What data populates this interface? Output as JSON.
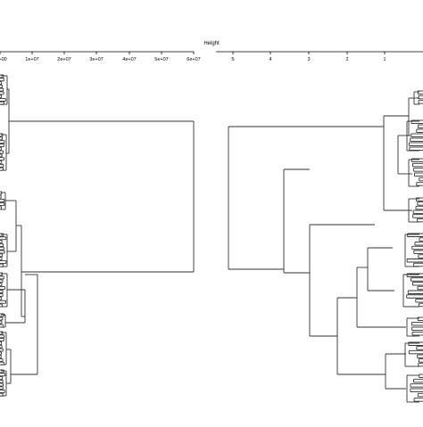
{
  "figure": {
    "axis_title": "Height"
  },
  "left_panel": {
    "tick_labels": [
      "0e+00",
      "1e+07",
      "2e+07",
      "3e+07",
      "4e+07",
      "5e+07",
      "6e+07"
    ],
    "tick_values": [
      0,
      10000000,
      20000000,
      30000000,
      40000000,
      50000000,
      60000000
    ]
  },
  "right_panel": {
    "tick_labels": [
      "5",
      "4",
      "3",
      "2",
      "1"
    ],
    "tick_values": [
      5,
      4,
      3,
      2,
      1
    ]
  },
  "colors": {
    "background": "#ffffff",
    "lines": "#333333",
    "axis": "#000000"
  }
}
